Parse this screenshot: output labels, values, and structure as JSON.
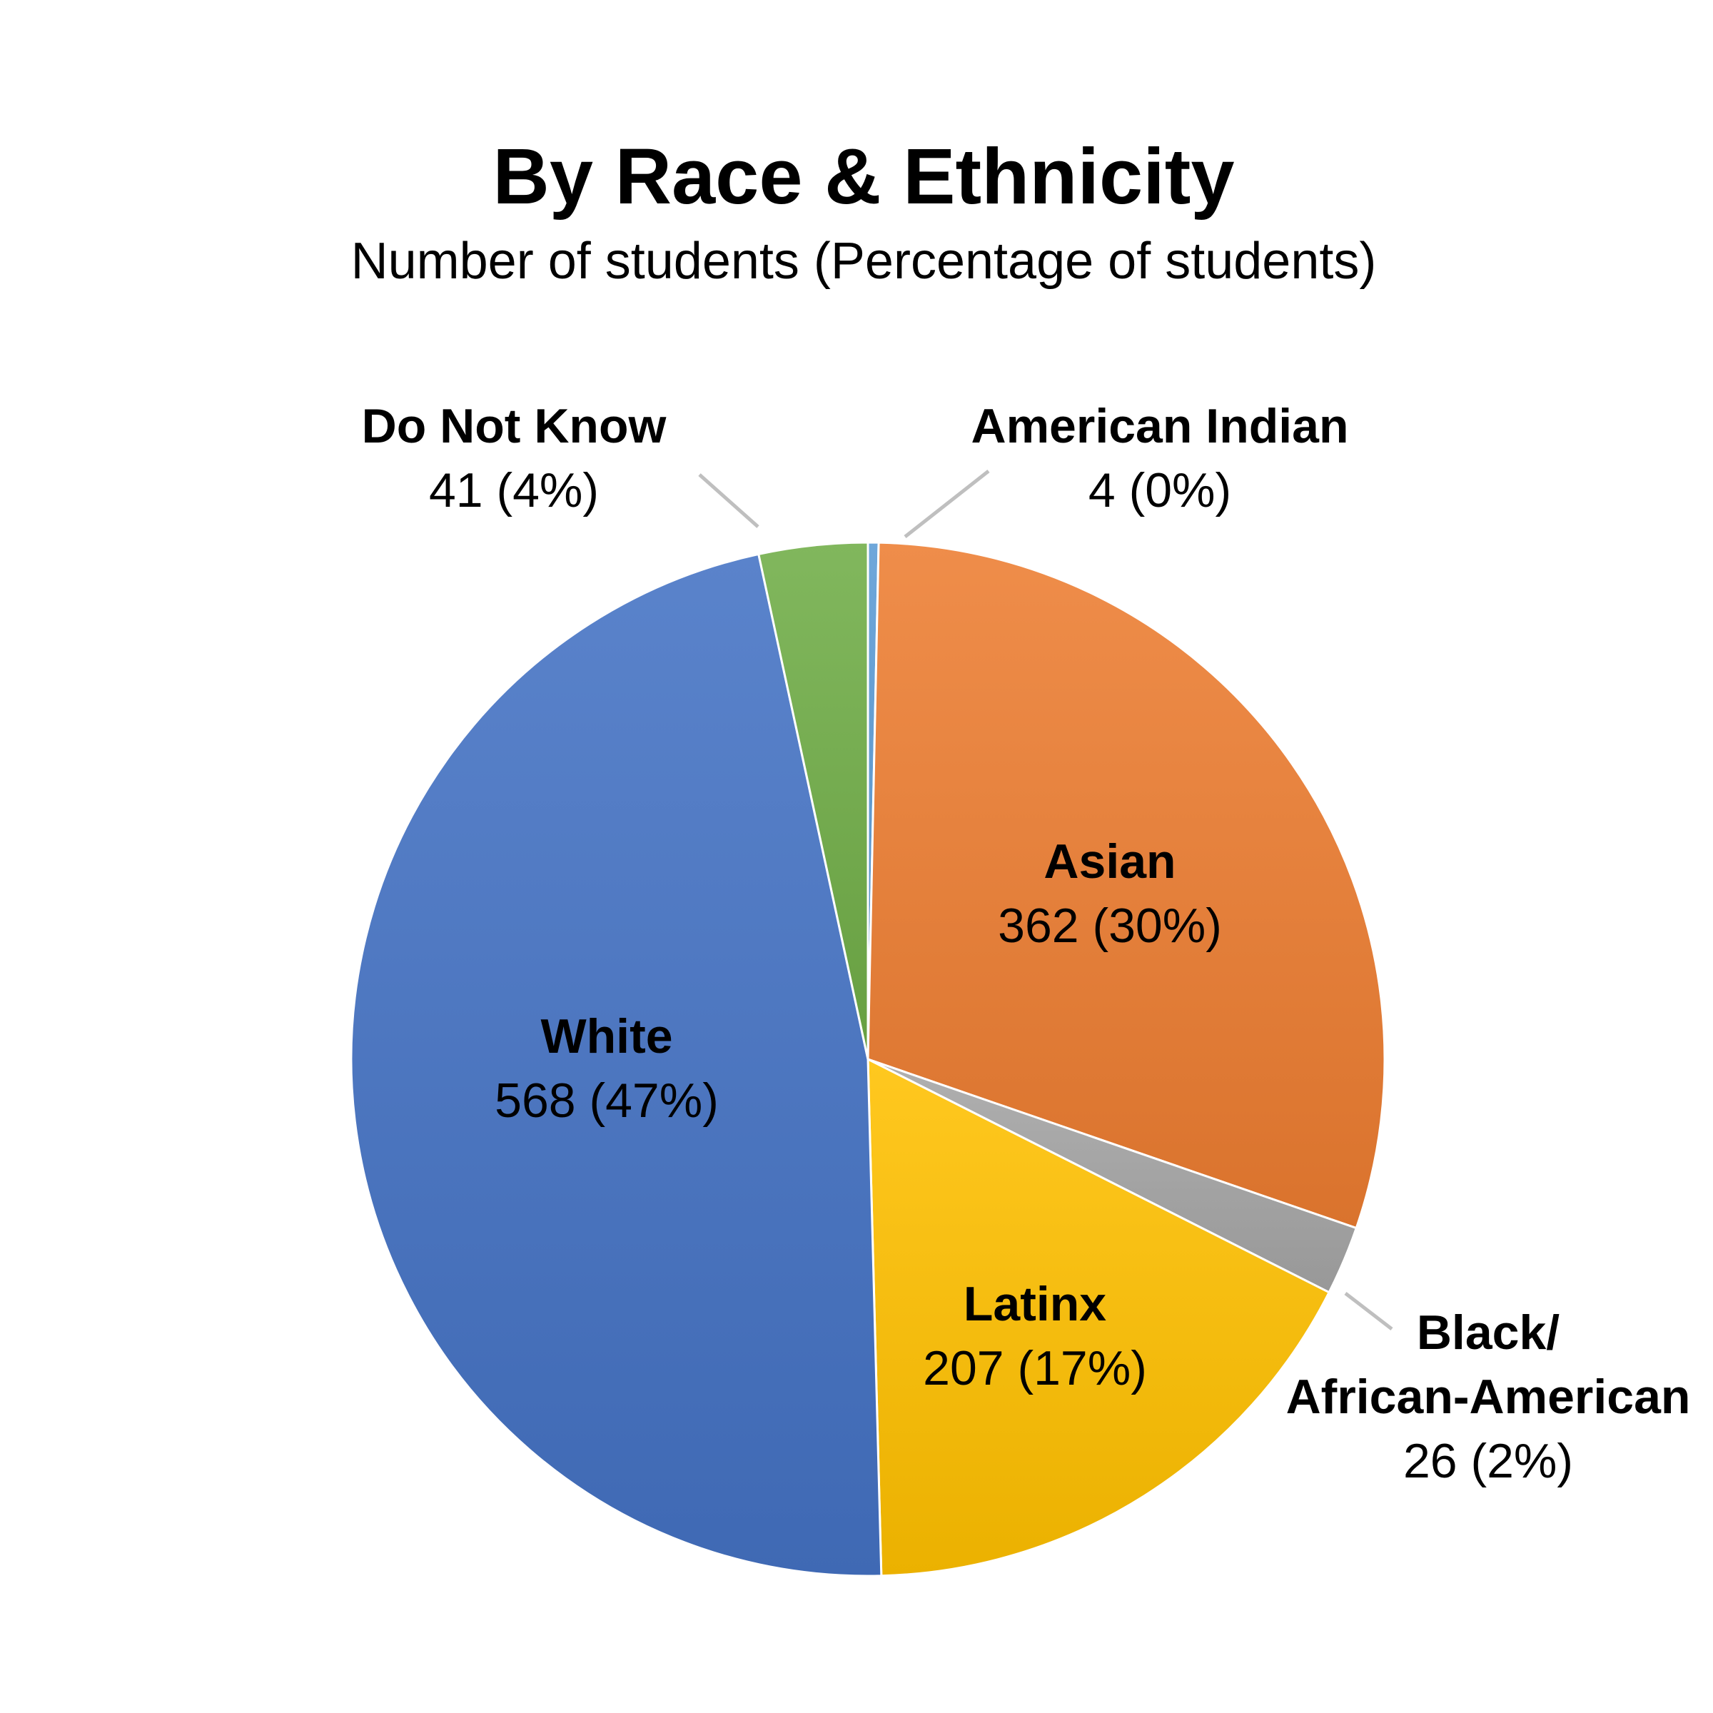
{
  "chart_data": {
    "type": "pie",
    "title": "By Race & Ethnicity",
    "subtitle": "Number of students (Percentage of students)",
    "slices": [
      {
        "name": "American Indian",
        "name_lines": [
          "American Indian"
        ],
        "value": 4,
        "percent_label": "4 (0%)",
        "color": "#5b9bd5"
      },
      {
        "name": "Asian",
        "name_lines": [
          "Asian"
        ],
        "value": 362,
        "percent_label": "362 (30%)",
        "color": "#ed7d31"
      },
      {
        "name": "Black/ African-American",
        "name_lines": [
          "Black/",
          "African-American"
        ],
        "value": 26,
        "percent_label": "26 (2%)",
        "color": "#a5a5a5"
      },
      {
        "name": "Latinx",
        "name_lines": [
          "Latinx"
        ],
        "value": 207,
        "percent_label": "207 (17%)",
        "color": "#ffc000"
      },
      {
        "name": "White",
        "name_lines": [
          "White"
        ],
        "value": 568,
        "percent_label": "568 (47%)",
        "color": "#4472c4"
      },
      {
        "name": "Do Not Know",
        "name_lines": [
          "Do Not Know"
        ],
        "value": 41,
        "percent_label": "41 (4%)",
        "color": "#70ad47"
      }
    ]
  }
}
